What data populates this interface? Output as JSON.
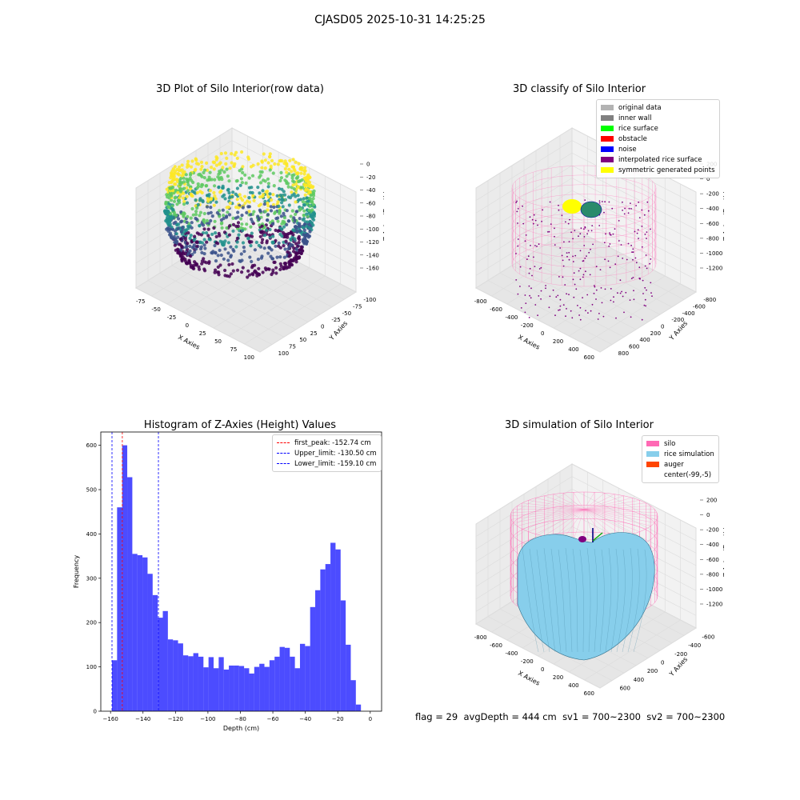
{
  "page_title": "CJASD05 2025-10-31 14:25:25",
  "footer": {
    "flag": "flag = 29",
    "avg_depth": "avgDepth = 444 cm",
    "sv1": "sv1 = 700~2300",
    "sv2": "sv2 = 700~2300"
  },
  "panel_raw": {
    "title": "3D Plot of Silo Interior(row data)",
    "xlabel": "X Axies",
    "ylabel": "Y Axies",
    "zlabel": "Z Axies (Depth)",
    "xticks": [
      "-75",
      "-50",
      "-25",
      "0",
      "25",
      "50",
      "75",
      "100"
    ],
    "yticks": [
      "-100",
      "-75",
      "-50",
      "-25",
      "0",
      "25",
      "50",
      "75",
      "100"
    ],
    "zticks": [
      "0",
      "-20",
      "-40",
      "-60",
      "-80",
      "-100",
      "-120",
      "-140",
      "-160"
    ]
  },
  "panel_classify": {
    "title": "3D classify of Silo Interior",
    "xlabel": "X Axies",
    "ylabel": "Y Axies",
    "zlabel": "Z Axies (Depth)",
    "xticks": [
      "-800",
      "-600",
      "-400",
      "-200",
      "0",
      "200",
      "400",
      "600"
    ],
    "yticks": [
      "-800",
      "-600",
      "-400",
      "-200",
      "0",
      "200",
      "400",
      "600",
      "800"
    ],
    "zticks": [
      "200",
      "0",
      "-200",
      "-400",
      "-600",
      "-800",
      "-1000",
      "-1200"
    ],
    "legend": [
      {
        "label": "original data",
        "color": "#b3b3b3"
      },
      {
        "label": "inner wall",
        "color": "#808080"
      },
      {
        "label": "rice surface",
        "color": "#00ff00"
      },
      {
        "label": "obstacle",
        "color": "#ff0000"
      },
      {
        "label": "noise",
        "color": "#0000ff"
      },
      {
        "label": "interpolated rice surface",
        "color": "#800080"
      },
      {
        "label": "symmetric generated points",
        "color": "#ffff00"
      }
    ]
  },
  "panel_sim": {
    "title": "3D simulation of Silo Interior",
    "xlabel": "X Axies",
    "ylabel": "Y Axies",
    "zlabel": "Z Axies (Depth)",
    "xticks": [
      "-800",
      "-600",
      "-400",
      "-200",
      "0",
      "200",
      "400",
      "600"
    ],
    "yticks": [
      "-600",
      "-400",
      "-200",
      "0",
      "200",
      "400",
      "600"
    ],
    "zticks": [
      "200",
      "0",
      "-200",
      "-400",
      "-600",
      "-800",
      "-1000",
      "-1200"
    ],
    "legend": [
      {
        "label": "silo",
        "color": "#ff69b4"
      },
      {
        "label": "rice simulation",
        "color": "#87ceeb"
      },
      {
        "label": "auger",
        "color": "#ff4500"
      },
      {
        "label": "center(-99,-5)",
        "color": "#ffffff"
      }
    ]
  },
  "chart_data": {
    "type": "bar",
    "title": "Histogram of Z-Axies (Height) Values",
    "xlabel": "Depth (cm)",
    "ylabel": "Frequency",
    "xlim": [
      -166,
      7
    ],
    "ylim": [
      0,
      630
    ],
    "xticks": [
      -160,
      -140,
      -120,
      -100,
      -80,
      -60,
      -40,
      -20,
      0
    ],
    "yticks": [
      0,
      100,
      200,
      300,
      400,
      500,
      600
    ],
    "bar_color": "#0000ff",
    "bin_start": -159.1,
    "bin_width": 3.13,
    "values": [
      115,
      460,
      600,
      528,
      355,
      352,
      347,
      310,
      262,
      211,
      226,
      162,
      160,
      153,
      126,
      124,
      131,
      123,
      99,
      122,
      97,
      122,
      94,
      103,
      103,
      102,
      97,
      85,
      100,
      107,
      100,
      115,
      123,
      145,
      143,
      123,
      97,
      152,
      147,
      235,
      273,
      320,
      332,
      380,
      365,
      250,
      150,
      70,
      15
    ],
    "vlines": [
      {
        "label": "first_peak: -152.74 cm",
        "x": -152.74,
        "color": "#ff0000"
      },
      {
        "label": "Upper_limit: -130.50 cm",
        "x": -130.5,
        "color": "#0000ff"
      },
      {
        "label": "Lower_limit: -159.10 cm",
        "x": -159.1,
        "color": "#0000ff"
      }
    ],
    "legend_position": "upper right"
  }
}
